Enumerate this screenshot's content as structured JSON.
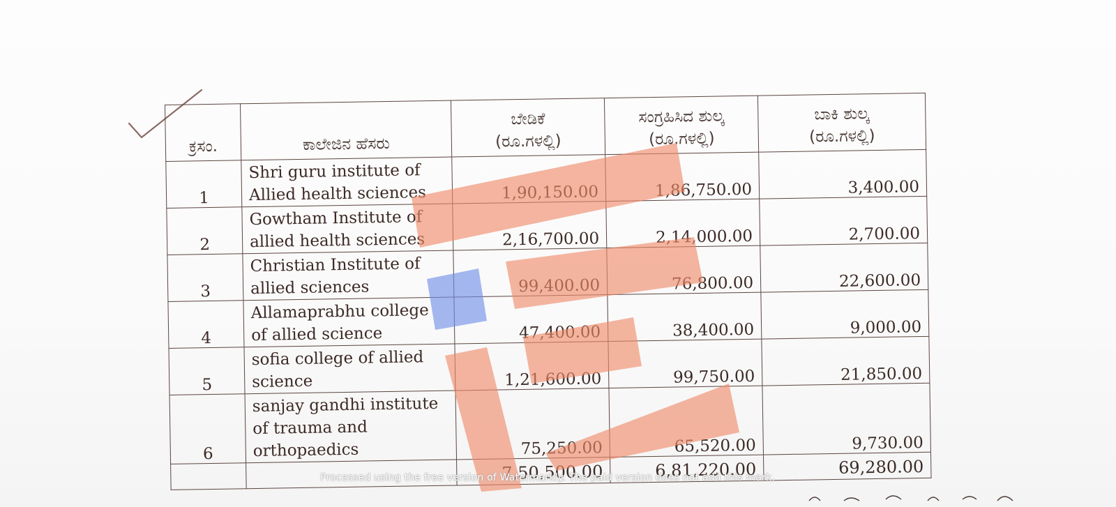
{
  "table": {
    "headers": {
      "sno": "ಕ್ರಸಂ.",
      "college_name": "ಕಾಲೇಜಿನ ಹೆಸರು",
      "demand_line1": "ಬೇಡಿಕೆ",
      "demand_line2": "(ರೂ.ಗಳಲ್ಲಿ)",
      "collected_line1": "ಸಂಗ್ರಹಿಸಿದ ಶುಲ್ಕ",
      "collected_line2": "(ರೂ.ಗಳಲ್ಲಿ)",
      "balance_line1": "ಬಾಕಿ ಶುಲ್ಕ",
      "balance_line2": "(ರೂ.ಗಳಲ್ಲಿ)"
    },
    "rows": [
      {
        "sno": "1",
        "name_lines": [
          "Shri guru institute of",
          "Allied health sciences"
        ],
        "demand": "1,90,150.00",
        "collected": "1,86,750.00",
        "balance": "3,400.00"
      },
      {
        "sno": "2",
        "name_lines": [
          "Gowtham Institute of",
          "allied health sciences"
        ],
        "demand": "2,16,700.00",
        "collected": "2,14,000.00",
        "balance": "2,700.00"
      },
      {
        "sno": "3",
        "name_lines": [
          "Christian Institute of",
          "allied sciences"
        ],
        "demand": "99,400.00",
        "collected": "76,800.00",
        "balance": "22,600.00"
      },
      {
        "sno": "4",
        "name_lines": [
          "Allamaprabhu college",
          "of allied science"
        ],
        "demand": "47,400.00",
        "collected": "38,400.00",
        "balance": "9,000.00"
      },
      {
        "sno": "5",
        "name_lines": [
          "sofia college of allied",
          "science"
        ],
        "demand": "1,21,600.00",
        "collected": "99,750.00",
        "balance": "21,850.00"
      },
      {
        "sno": "6",
        "name_lines": [
          "sanjay gandhi institute",
          "of trauma and",
          "orthopaedics"
        ],
        "demand": "75,250.00",
        "collected": "65,520.00",
        "balance": "9,730.00"
      }
    ],
    "totals": {
      "demand": "7,50,500.00",
      "collected": "6,81,220.00",
      "balance": "69,280.00"
    }
  },
  "watermark": {
    "text": "Processed using the free version of Watermarkly. The paid version does not add this mark.",
    "colors": {
      "orange": "#f08a68",
      "blue": "#6f8ee8"
    }
  },
  "colors": {
    "ink": "#3c2a26",
    "rule": "#5a4540",
    "paper": "#fcfcfc"
  }
}
